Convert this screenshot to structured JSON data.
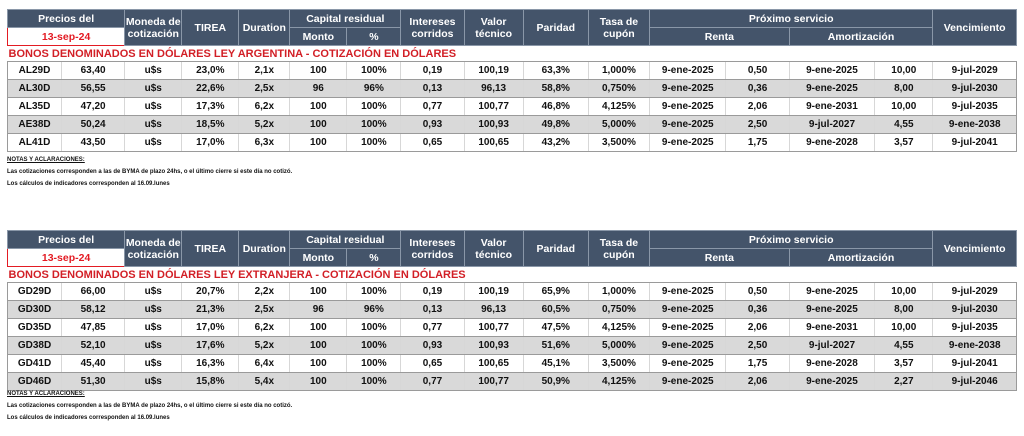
{
  "header": {
    "precios_del": "Precios del",
    "date": "13-sep-24",
    "moneda": "Moneda de cotización",
    "tirea": "TIREA",
    "duration": "Duration",
    "capital_residual": "Capital residual",
    "monto": "Monto",
    "pct": "%",
    "intereses": "Intereses corridos",
    "valor": "Valor técnico",
    "paridad": "Paridad",
    "tasa": "Tasa de cupón",
    "proximo": "Próximo servicio",
    "renta": "Renta",
    "amortizacion": "Amortización",
    "vencimiento": "Vencimiento"
  },
  "section1": {
    "title": "BONOS DENOMINADOS EN DÓLARES LEY ARGENTINA   -   COTIZACIÓN EN DÓLARES",
    "rows": [
      [
        "AL29D",
        "63,40",
        "u$s",
        "23,0%",
        "2,1x",
        "100",
        "100%",
        "0,19",
        "100,19",
        "63,3%",
        "1,000%",
        "9-ene-2025",
        "0,50",
        "9-ene-2025",
        "10,00",
        "9-jul-2029"
      ],
      [
        "AL30D",
        "56,55",
        "u$s",
        "22,6%",
        "2,5x",
        "96",
        "96%",
        "0,13",
        "96,13",
        "58,8%",
        "0,750%",
        "9-ene-2025",
        "0,36",
        "9-ene-2025",
        "8,00",
        "9-jul-2030"
      ],
      [
        "AL35D",
        "47,20",
        "u$s",
        "17,3%",
        "6,2x",
        "100",
        "100%",
        "0,77",
        "100,77",
        "46,8%",
        "4,125%",
        "9-ene-2025",
        "2,06",
        "9-ene-2031",
        "10,00",
        "9-jul-2035"
      ],
      [
        "AE38D",
        "50,24",
        "u$s",
        "18,5%",
        "5,2x",
        "100",
        "100%",
        "0,93",
        "100,93",
        "49,8%",
        "5,000%",
        "9-ene-2025",
        "2,50",
        "9-jul-2027",
        "4,55",
        "9-ene-2038"
      ],
      [
        "AL41D",
        "43,50",
        "u$s",
        "17,0%",
        "6,3x",
        "100",
        "100%",
        "0,65",
        "100,65",
        "43,2%",
        "3,500%",
        "9-ene-2025",
        "1,75",
        "9-ene-2028",
        "3,57",
        "9-jul-2041"
      ]
    ],
    "notes": {
      "heading": "NOTAS Y ACLARACIONES:",
      "line1": "Las cotizaciones corresponden a las de BYMA de plazo 24hs, o el último cierre si este día no cotizó.",
      "line2": "Los cálculos de indicadores corresponden al 16.09.lunes"
    }
  },
  "section2": {
    "title": "BONOS DENOMINADOS EN DÓLARES LEY EXTRANJERA   -   COTIZACIÓN EN DÓLARES",
    "rows": [
      [
        "GD29D",
        "66,00",
        "u$s",
        "20,7%",
        "2,2x",
        "100",
        "100%",
        "0,19",
        "100,19",
        "65,9%",
        "1,000%",
        "9-ene-2025",
        "0,50",
        "9-ene-2025",
        "10,00",
        "9-jul-2029"
      ],
      [
        "GD30D",
        "58,12",
        "u$s",
        "21,3%",
        "2,5x",
        "96",
        "96%",
        "0,13",
        "96,13",
        "60,5%",
        "0,750%",
        "9-ene-2025",
        "0,36",
        "9-ene-2025",
        "8,00",
        "9-jul-2030"
      ],
      [
        "GD35D",
        "47,85",
        "u$s",
        "17,0%",
        "6,2x",
        "100",
        "100%",
        "0,77",
        "100,77",
        "47,5%",
        "4,125%",
        "9-ene-2025",
        "2,06",
        "9-ene-2031",
        "10,00",
        "9-jul-2035"
      ],
      [
        "GD38D",
        "52,10",
        "u$s",
        "17,6%",
        "5,2x",
        "100",
        "100%",
        "0,93",
        "100,93",
        "51,6%",
        "5,000%",
        "9-ene-2025",
        "2,50",
        "9-jul-2027",
        "4,55",
        "9-ene-2038"
      ],
      [
        "GD41D",
        "45,40",
        "u$s",
        "16,3%",
        "6,4x",
        "100",
        "100%",
        "0,65",
        "100,65",
        "45,1%",
        "3,500%",
        "9-ene-2025",
        "1,75",
        "9-ene-2028",
        "3,57",
        "9-jul-2041"
      ],
      [
        "GD46D",
        "51,30",
        "u$s",
        "15,8%",
        "5,4x",
        "100",
        "100%",
        "0,77",
        "100,77",
        "50,9%",
        "4,125%",
        "9-ene-2025",
        "2,06",
        "9-ene-2025",
        "2,27",
        "9-jul-2046"
      ]
    ],
    "notes": {
      "heading": "NOTAS Y ACLARACIONES:",
      "line1": "Las cotizaciones corresponden a las de BYMA de plazo 24hs, o el último cierre si este día no cotizó.",
      "line2": "Los cálculos de indicadores corresponden al 16.09.lunes"
    }
  },
  "colors": {
    "header_bg": "#44546a",
    "title_red": "#d21f26",
    "even_row": "#d9d9d9"
  }
}
